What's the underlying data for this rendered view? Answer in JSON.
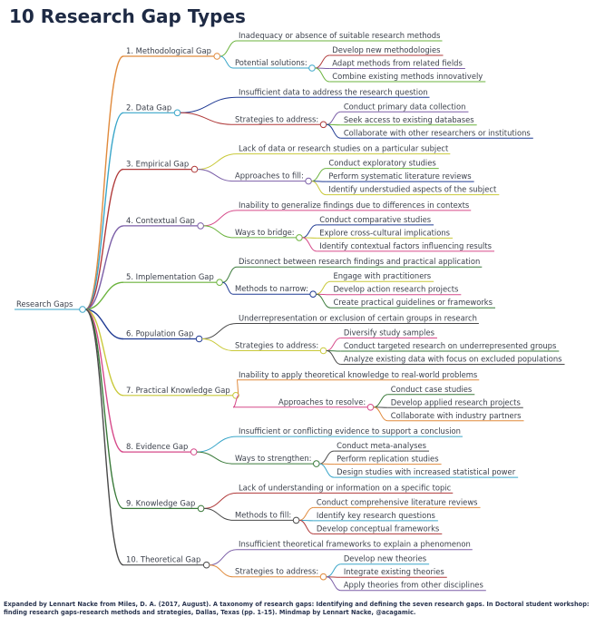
{
  "title": "10  Research Gap Types",
  "footer": "Expanded by Lennart Nacke from Miles, D. A. (2017, August). A taxonomy of research gaps: Identifying and defining the seven research gaps. In Doctoral student workshop: finding research gaps-research methods and strategies, Dallas, Texas (pp. 1-15). Mindmap by Lennart Nacke, @acagamic.",
  "root": "Research Gaps",
  "colors": [
    "#e08a3c",
    "#3aa6c9",
    "#b03a3a",
    "#7b5ea7",
    "#6bb33d",
    "#1f3a93",
    "#c9c93a",
    "#d64a8a",
    "#3a7a3a",
    "#4a4a4a"
  ],
  "gaps": [
    {
      "name": "1. Methodological Gap",
      "definition": "Inadequacy or absence of suitable research methods",
      "approach_label": "Potential solutions:",
      "items": [
        "Develop new methodologies",
        "Adapt methods from related fields",
        "Combine existing methods innovatively"
      ]
    },
    {
      "name": "2. Data Gap",
      "definition": "Insufficient data to address the research question",
      "approach_label": "Strategies to address:",
      "items": [
        "Conduct primary data collection",
        "Seek access to existing databases",
        "Collaborate with other researchers or institutions"
      ]
    },
    {
      "name": "3. Empirical Gap",
      "definition": "Lack of data or research studies on a particular subject",
      "approach_label": "Approaches to fill:",
      "items": [
        "Conduct exploratory studies",
        "Perform systematic literature reviews",
        "Identify understudied aspects of the subject"
      ]
    },
    {
      "name": "4. Contextual Gap",
      "definition": "Inability to generalize findings due to differences in contexts",
      "approach_label": "Ways to bridge:",
      "items": [
        "Conduct comparative studies",
        "Explore cross-cultural implications",
        "Identify contextual factors influencing results"
      ]
    },
    {
      "name": "5. Implementation Gap",
      "definition": "Disconnect between research findings and practical application",
      "approach_label": "Methods to narrow:",
      "items": [
        "Engage with practitioners",
        "Develop action research projects",
        "Create practical guidelines or frameworks"
      ]
    },
    {
      "name": "6. Population Gap",
      "definition": "Underrepresentation or exclusion of certain groups in research",
      "approach_label": "Strategies to address:",
      "items": [
        "Diversify study samples",
        "Conduct targeted research on underrepresented groups",
        "Analyze existing data with focus on excluded populations"
      ]
    },
    {
      "name": "7. Practical Knowledge Gap",
      "definition": "Inability to apply theoretical knowledge to real-world problems",
      "approach_label": "Approaches to resolve:",
      "items": [
        "Conduct case studies",
        "Develop applied research projects",
        "Collaborate with industry partners"
      ]
    },
    {
      "name": "8. Evidence Gap",
      "definition": "Insufficient or conflicting evidence to support a conclusion",
      "approach_label": "Ways to strengthen:",
      "items": [
        "Conduct meta-analyses",
        "Perform replication studies",
        "Design studies with increased statistical power"
      ]
    },
    {
      "name": "9. Knowledge Gap",
      "definition": "Lack of understanding or information on a specific topic",
      "approach_label": "Methods to fill:",
      "items": [
        "Conduct comprehensive literature reviews",
        "Identify key research questions",
        "Develop conceptual frameworks"
      ]
    },
    {
      "name": "10. Theoretical Gap",
      "definition": "Insufficient theoretical frameworks to explain a phenomenon",
      "approach_label": "Strategies to address:",
      "items": [
        "Develop new theories",
        "Integrate existing theories",
        "Apply theories from other disciplines"
      ]
    }
  ]
}
